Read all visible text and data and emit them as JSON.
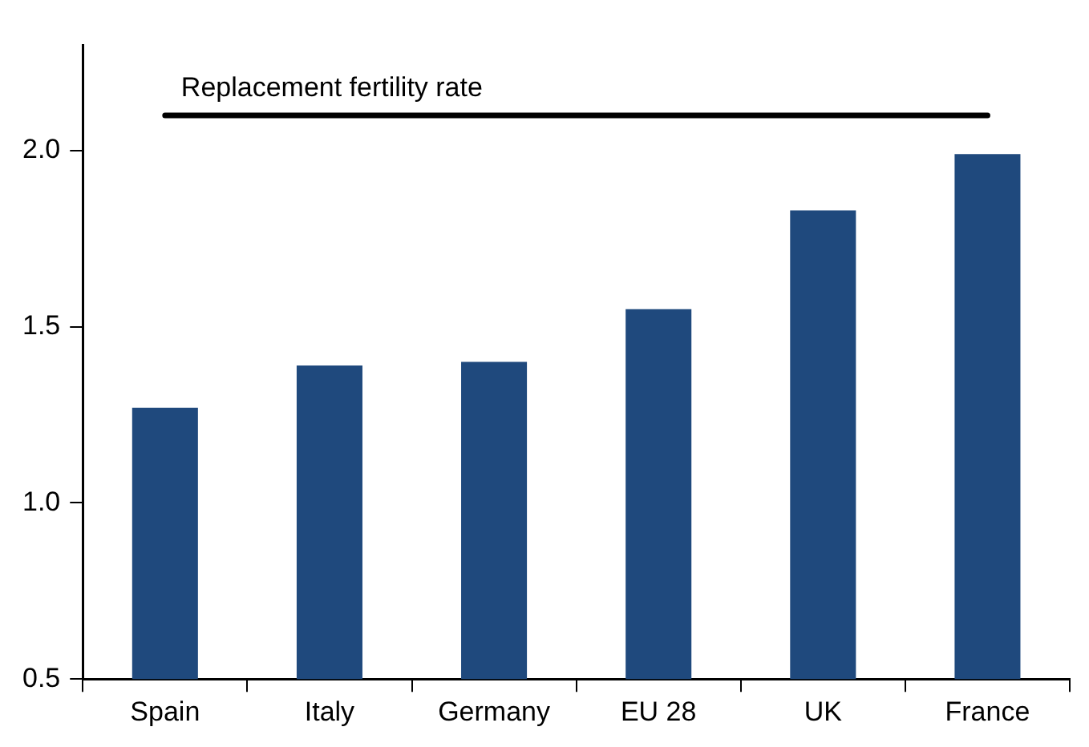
{
  "chart_data": {
    "type": "bar",
    "categories": [
      "Spain",
      "Italy",
      "Germany",
      "EU 28",
      "UK",
      "France"
    ],
    "values": [
      1.27,
      1.39,
      1.4,
      1.55,
      1.83,
      1.99
    ],
    "color": "#1f497d",
    "ylim": [
      0.5,
      2.3
    ],
    "yticks": [
      0.5,
      {
        "value": 1,
        "label": "1.0"
      },
      1.5,
      {
        "value": 2,
        "label": "2.0"
      }
    ],
    "grid": false,
    "legend": false,
    "ref_lines": [
      {
        "axis": "y",
        "value": 2.1,
        "label": "Replacement fertility rate",
        "color": "#000000"
      }
    ]
  }
}
